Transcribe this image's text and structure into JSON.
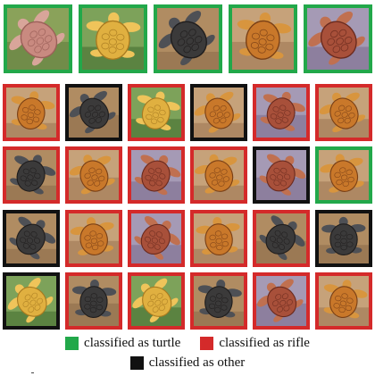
{
  "legend": {
    "turtle": {
      "label": "classified as turtle",
      "color": "#22a84a"
    },
    "rifle": {
      "label": "classified as rifle",
      "color": "#d42a2a"
    },
    "other": {
      "label": "classified as other",
      "color": "#111111"
    }
  },
  "rows": [
    {
      "tiles": [
        {
          "class": "turtle",
          "variant": "pink"
        },
        {
          "class": "turtle",
          "variant": "yellow"
        },
        {
          "class": "turtle",
          "variant": "dark"
        },
        {
          "class": "turtle",
          "variant": "orange"
        },
        {
          "class": "turtle",
          "variant": "red"
        }
      ]
    },
    {
      "tiles": [
        {
          "class": "rifle",
          "variant": "orange"
        },
        {
          "class": "other",
          "variant": "dark"
        },
        {
          "class": "rifle",
          "variant": "yellow"
        },
        {
          "class": "other",
          "variant": "orange"
        },
        {
          "class": "rifle",
          "variant": "red"
        },
        {
          "class": "rifle",
          "variant": "orange"
        }
      ]
    },
    {
      "tiles": [
        {
          "class": "rifle",
          "variant": "dark"
        },
        {
          "class": "rifle",
          "variant": "orange"
        },
        {
          "class": "rifle",
          "variant": "red"
        },
        {
          "class": "rifle",
          "variant": "orange"
        },
        {
          "class": "other",
          "variant": "red"
        },
        {
          "class": "turtle",
          "variant": "orange"
        }
      ]
    },
    {
      "tiles": [
        {
          "class": "other",
          "variant": "dark"
        },
        {
          "class": "rifle",
          "variant": "orange"
        },
        {
          "class": "rifle",
          "variant": "red"
        },
        {
          "class": "rifle",
          "variant": "orange"
        },
        {
          "class": "rifle",
          "variant": "dark"
        },
        {
          "class": "other",
          "variant": "dark"
        }
      ]
    },
    {
      "tiles": [
        {
          "class": "other",
          "variant": "yellow"
        },
        {
          "class": "rifle",
          "variant": "dark"
        },
        {
          "class": "rifle",
          "variant": "yellow"
        },
        {
          "class": "rifle",
          "variant": "dark"
        },
        {
          "class": "rifle",
          "variant": "red"
        },
        {
          "class": "rifle",
          "variant": "orange"
        }
      ]
    }
  ]
}
